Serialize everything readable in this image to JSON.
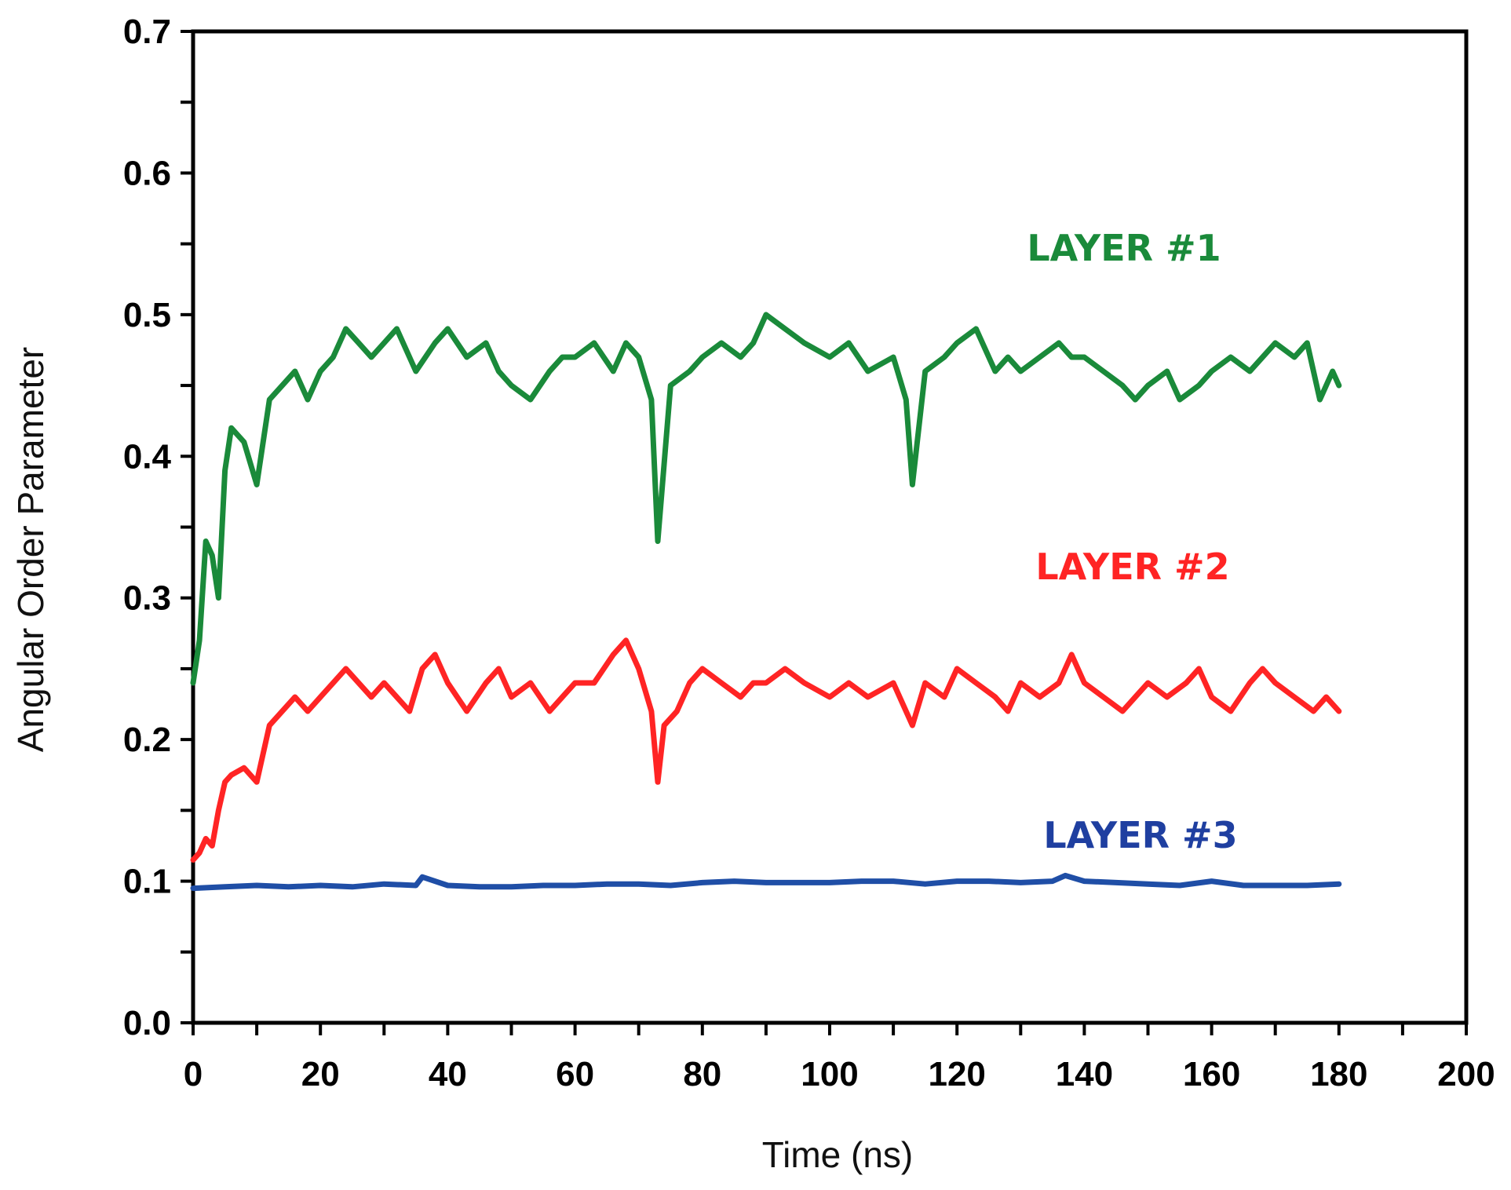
{
  "chart_data": {
    "type": "line",
    "xlabel": "Time (ns)",
    "ylabel": "Angular Order Parameter",
    "xlim": [
      0,
      200
    ],
    "ylim": [
      0,
      0.7
    ],
    "x_ticks": [
      "0",
      "20",
      "40",
      "60",
      "80",
      "100",
      "120",
      "140",
      "160",
      "180",
      "200"
    ],
    "y_ticks": [
      "0.0",
      "0.1",
      "0.2",
      "0.3",
      "0.4",
      "0.5",
      "0.6",
      "0.7"
    ],
    "x_minor_step": 10,
    "y_minor_step": 0.05,
    "grid": false,
    "series": [
      {
        "name": "LAYER #1",
        "color": "#1a8a3a",
        "x": [
          0,
          1,
          2,
          3,
          4,
          5,
          6,
          8,
          10,
          12,
          14,
          16,
          18,
          20,
          22,
          24,
          26,
          28,
          30,
          32,
          35,
          38,
          40,
          43,
          46,
          48,
          50,
          53,
          56,
          58,
          60,
          63,
          66,
          68,
          70,
          72,
          73,
          75,
          78,
          80,
          83,
          86,
          88,
          90,
          93,
          96,
          100,
          103,
          106,
          110,
          112,
          113,
          115,
          118,
          120,
          123,
          126,
          128,
          130,
          133,
          136,
          138,
          140,
          143,
          146,
          148,
          150,
          153,
          155,
          158,
          160,
          163,
          166,
          168,
          170,
          173,
          175,
          177,
          179,
          180
        ],
        "y": [
          0.24,
          0.27,
          0.34,
          0.33,
          0.3,
          0.39,
          0.42,
          0.41,
          0.38,
          0.44,
          0.45,
          0.46,
          0.44,
          0.46,
          0.47,
          0.49,
          0.48,
          0.47,
          0.48,
          0.49,
          0.46,
          0.48,
          0.49,
          0.47,
          0.48,
          0.46,
          0.45,
          0.44,
          0.46,
          0.47,
          0.47,
          0.48,
          0.46,
          0.48,
          0.47,
          0.44,
          0.34,
          0.45,
          0.46,
          0.47,
          0.48,
          0.47,
          0.48,
          0.5,
          0.49,
          0.48,
          0.47,
          0.48,
          0.46,
          0.47,
          0.44,
          0.38,
          0.46,
          0.47,
          0.48,
          0.49,
          0.46,
          0.47,
          0.46,
          0.47,
          0.48,
          0.47,
          0.47,
          0.46,
          0.45,
          0.44,
          0.45,
          0.46,
          0.44,
          0.45,
          0.46,
          0.47,
          0.46,
          0.47,
          0.48,
          0.47,
          0.48,
          0.44,
          0.46,
          0.45
        ]
      },
      {
        "name": "LAYER #2",
        "color": "#ff2424",
        "x": [
          0,
          1,
          2,
          3,
          4,
          5,
          6,
          8,
          10,
          12,
          14,
          16,
          18,
          20,
          22,
          24,
          26,
          28,
          30,
          32,
          34,
          36,
          38,
          40,
          43,
          46,
          48,
          50,
          53,
          56,
          58,
          60,
          63,
          66,
          68,
          70,
          72,
          73,
          74,
          76,
          78,
          80,
          83,
          86,
          88,
          90,
          93,
          96,
          100,
          103,
          106,
          110,
          113,
          115,
          118,
          120,
          123,
          126,
          128,
          130,
          133,
          136,
          138,
          140,
          143,
          146,
          148,
          150,
          153,
          156,
          158,
          160,
          163,
          166,
          168,
          170,
          173,
          176,
          178,
          180
        ],
        "y": [
          0.115,
          0.12,
          0.13,
          0.125,
          0.15,
          0.17,
          0.175,
          0.18,
          0.17,
          0.21,
          0.22,
          0.23,
          0.22,
          0.23,
          0.24,
          0.25,
          0.24,
          0.23,
          0.24,
          0.23,
          0.22,
          0.25,
          0.26,
          0.24,
          0.22,
          0.24,
          0.25,
          0.23,
          0.24,
          0.22,
          0.23,
          0.24,
          0.24,
          0.26,
          0.27,
          0.25,
          0.22,
          0.17,
          0.21,
          0.22,
          0.24,
          0.25,
          0.24,
          0.23,
          0.24,
          0.24,
          0.25,
          0.24,
          0.23,
          0.24,
          0.23,
          0.24,
          0.21,
          0.24,
          0.23,
          0.25,
          0.24,
          0.23,
          0.22,
          0.24,
          0.23,
          0.24,
          0.26,
          0.24,
          0.23,
          0.22,
          0.23,
          0.24,
          0.23,
          0.24,
          0.25,
          0.23,
          0.22,
          0.24,
          0.25,
          0.24,
          0.23,
          0.22,
          0.23,
          0.22
        ]
      },
      {
        "name": "LAYER #3",
        "color": "#1f4ea6",
        "x": [
          0,
          5,
          10,
          15,
          20,
          25,
          30,
          35,
          36,
          40,
          45,
          50,
          55,
          60,
          65,
          70,
          75,
          80,
          85,
          90,
          95,
          100,
          105,
          110,
          115,
          120,
          125,
          130,
          135,
          137,
          140,
          145,
          150,
          155,
          160,
          165,
          170,
          175,
          180
        ],
        "y": [
          0.095,
          0.096,
          0.097,
          0.096,
          0.097,
          0.096,
          0.098,
          0.097,
          0.103,
          0.097,
          0.096,
          0.096,
          0.097,
          0.097,
          0.098,
          0.098,
          0.097,
          0.099,
          0.1,
          0.099,
          0.099,
          0.099,
          0.1,
          0.1,
          0.098,
          0.1,
          0.1,
          0.099,
          0.1,
          0.104,
          0.1,
          0.099,
          0.098,
          0.097,
          0.1,
          0.097,
          0.097,
          0.097,
          0.098
        ]
      }
    ]
  }
}
